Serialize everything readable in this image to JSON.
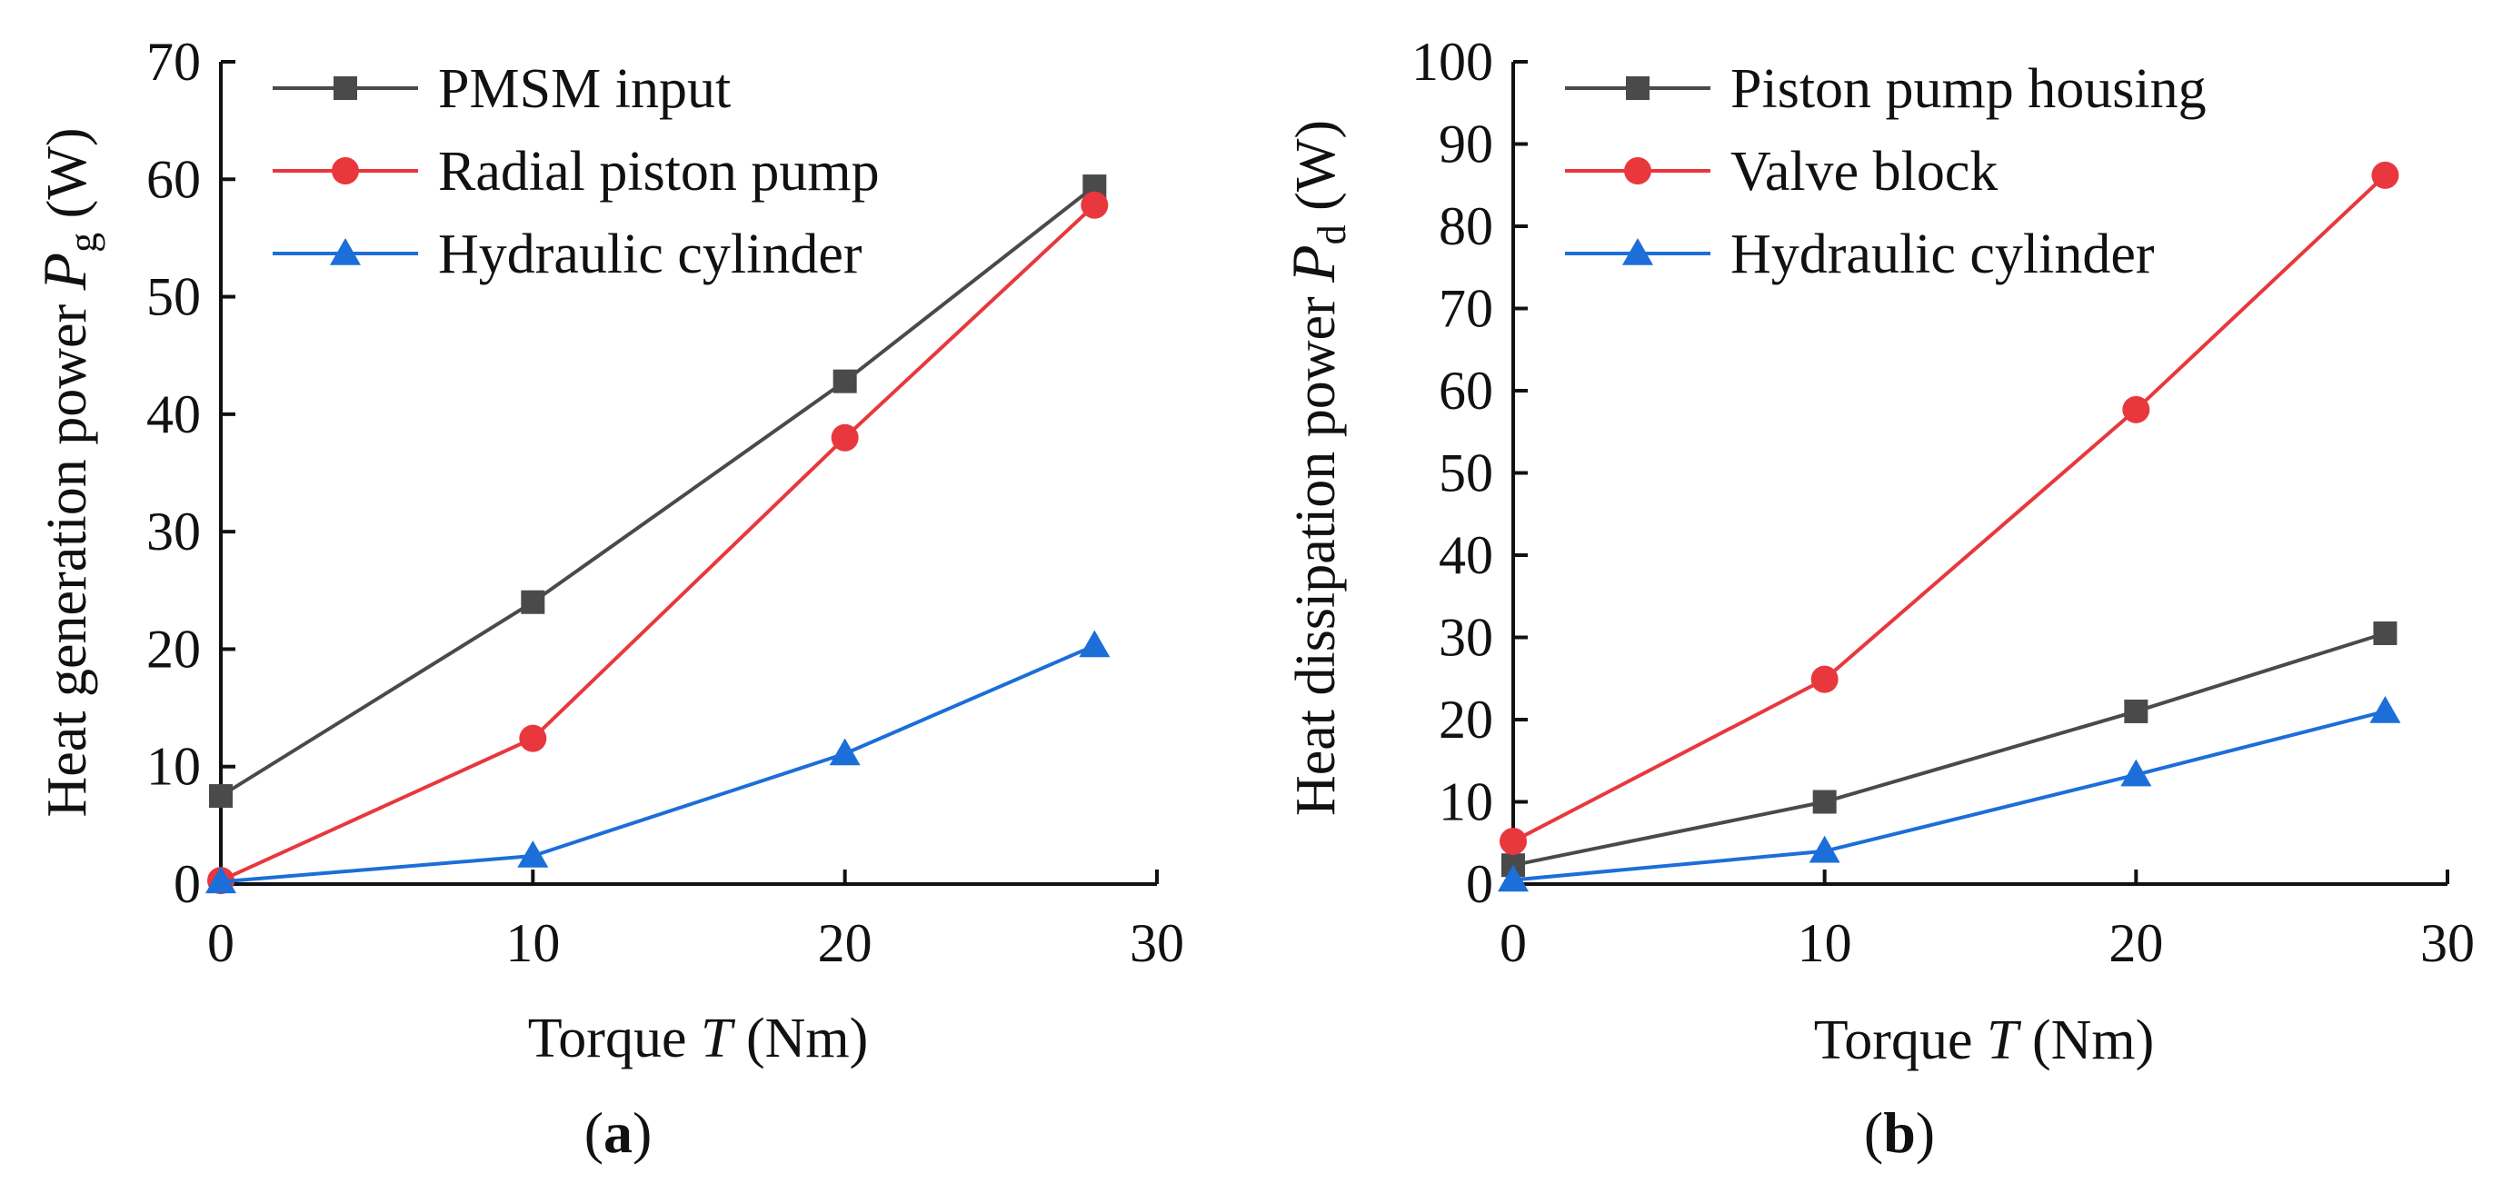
{
  "figure": {
    "panel_a_label": "a",
    "panel_b_label": "b"
  },
  "chart_data": [
    {
      "type": "line",
      "panel": "a",
      "title": "",
      "xlabel_main": "Torque ",
      "xlabel_var": "T",
      "xlabel_unit": " (Nm)",
      "ylabel_main": "Heat generation power ",
      "ylabel_var": "P",
      "ylabel_sub": "g",
      "ylabel_unit": " (W)",
      "xlim": [
        0,
        30
      ],
      "ylim": [
        0,
        70
      ],
      "xticks": [
        0,
        10,
        20,
        30
      ],
      "yticks": [
        0,
        10,
        20,
        30,
        40,
        50,
        60,
        70
      ],
      "legend_position": "top-left",
      "x": [
        0,
        10,
        20,
        28
      ],
      "series": [
        {
          "name": "PMSM input",
          "marker": "square",
          "color": "#4a4a4a",
          "values": [
            7.5,
            24,
            42.8,
            59.4
          ]
        },
        {
          "name": "Radial piston pump",
          "marker": "circle",
          "color": "#e8383d",
          "values": [
            0.3,
            12.4,
            38,
            57.8
          ]
        },
        {
          "name": "Hydraulic cylinder",
          "marker": "triangle",
          "color": "#1c6ed8",
          "values": [
            0.2,
            2.4,
            11.1,
            20.3
          ]
        }
      ]
    },
    {
      "type": "line",
      "panel": "b",
      "title": "",
      "xlabel_main": "Torque ",
      "xlabel_var": "T",
      "xlabel_unit": " (Nm)",
      "ylabel_main": "Heat dissipation power ",
      "ylabel_var": "P",
      "ylabel_sub": "d",
      "ylabel_unit": " (W)",
      "xlim": [
        0,
        30
      ],
      "ylim": [
        0,
        100
      ],
      "xticks": [
        0,
        10,
        20,
        30
      ],
      "yticks": [
        0,
        10,
        20,
        30,
        40,
        50,
        60,
        70,
        80,
        90,
        100
      ],
      "legend_position": "top-left",
      "x": [
        0,
        10,
        20,
        28
      ],
      "series": [
        {
          "name": "Piston pump housing",
          "marker": "square",
          "color": "#4a4a4a",
          "values": [
            2.3,
            10,
            21,
            30.5
          ]
        },
        {
          "name": "Valve block",
          "marker": "circle",
          "color": "#e8383d",
          "values": [
            5.2,
            24.9,
            57.7,
            86.2
          ]
        },
        {
          "name": "Hydraulic cylinder",
          "marker": "triangle",
          "color": "#1c6ed8",
          "values": [
            0.5,
            4,
            13.3,
            21
          ]
        }
      ]
    }
  ]
}
